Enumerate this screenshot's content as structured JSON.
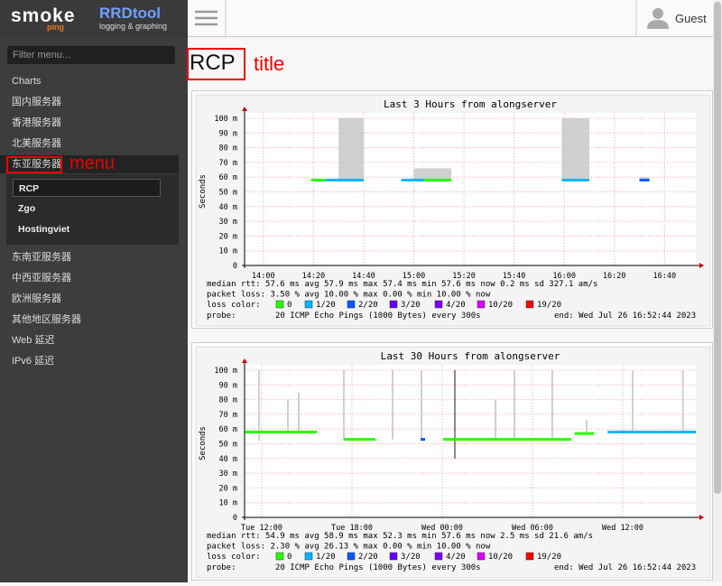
{
  "header": {
    "logo_smoke": "smoke",
    "logo_ping": "ping",
    "logo_rrd": "RRDtool",
    "logo_rrd_sub": "logging & graphing",
    "user": "Guest"
  },
  "sidebar": {
    "filter_placeholder": "Filter menu...",
    "items": [
      {
        "label": "Charts"
      },
      {
        "label": "国内服务器"
      },
      {
        "label": "香港服务器"
      },
      {
        "label": "北美服务器"
      },
      {
        "label": "东亚服务器",
        "children": [
          "RCP",
          "Zgo",
          "Hostingviet"
        ]
      },
      {
        "label": "东南亚服务器"
      },
      {
        "label": "中西亚服务器"
      },
      {
        "label": "欧洲服务器"
      },
      {
        "label": "其他地区服务器"
      },
      {
        "label": "Web 延迟"
      },
      {
        "label": "IPv6 延迟"
      }
    ]
  },
  "page": {
    "title": "RCP"
  },
  "annotations": {
    "title": "title",
    "menu": "menu"
  },
  "graphs": [
    {
      "title": "Last 3 Hours from alongserver",
      "y_label": "Seconds",
      "ylim": [
        0,
        100
      ],
      "yticks": [
        {
          "value": 0,
          "label": "0"
        },
        {
          "value": 10,
          "label": "10 m"
        },
        {
          "value": 20,
          "label": "20 m"
        },
        {
          "value": 30,
          "label": "30 m"
        },
        {
          "value": 40,
          "label": "40 m"
        },
        {
          "value": 50,
          "label": "50 m"
        },
        {
          "value": 60,
          "label": "60 m"
        },
        {
          "value": 70,
          "label": "70 m"
        },
        {
          "value": 80,
          "label": "80 m"
        },
        {
          "value": 90,
          "label": "90 m"
        },
        {
          "value": 100,
          "label": "100 m"
        }
      ],
      "xlim": [
        -7.5,
        172.5
      ],
      "xticks": [
        {
          "value": 0,
          "label": "14:00"
        },
        {
          "value": 20,
          "label": "14:20"
        },
        {
          "value": 40,
          "label": "14:40"
        },
        {
          "value": 60,
          "label": "15:00"
        },
        {
          "value": 80,
          "label": "15:20"
        },
        {
          "value": 100,
          "label": "15:40"
        },
        {
          "value": 120,
          "label": "16:00"
        },
        {
          "value": 140,
          "label": "16:20"
        },
        {
          "value": 160,
          "label": "16:40"
        }
      ],
      "smoke": [
        {
          "start": 30,
          "end": 40,
          "low": 58,
          "high": 100
        },
        {
          "start": 60,
          "end": 75,
          "low": 58,
          "high": 66
        },
        {
          "start": 119,
          "end": 130,
          "low": 58,
          "high": 100
        },
        {
          "start": 150,
          "end": 154,
          "low": 58,
          "high": 60
        }
      ],
      "median": [
        {
          "start": 19,
          "end": 25,
          "value": 58,
          "color": "#26ff00"
        },
        {
          "start": 25,
          "end": 40,
          "value": 58,
          "color": "#00b8ff"
        },
        {
          "start": 55,
          "end": 64,
          "value": 58,
          "color": "#00b8ff"
        },
        {
          "start": 64,
          "end": 75,
          "value": 58,
          "color": "#26ff00"
        },
        {
          "start": 119,
          "end": 130,
          "value": 58,
          "color": "#00b8ff"
        },
        {
          "start": 150,
          "end": 154,
          "value": 58,
          "color": "#0059ff"
        }
      ],
      "stats": [
        "median rtt:   57.6 ms avg   57.9 ms max   57.4 ms min   57.6 ms now   0.2 ms sd   327.1    am/s",
        "packet loss:  3.50 % avg   10.00 % max   0.00 % min   10.00 % now"
      ],
      "loss_label": "loss color:",
      "loss_colors": [
        {
          "label": "0",
          "color": "#26ff00"
        },
        {
          "label": "1/20",
          "color": "#00b8ff"
        },
        {
          "label": "2/20",
          "color": "#0059ff"
        },
        {
          "label": "3/20",
          "color": "#5e00ff"
        },
        {
          "label": "4/20",
          "color": "#7e00ff"
        },
        {
          "label": "10/20",
          "color": "#dd00ff"
        },
        {
          "label": "19/20",
          "color": "#ff0000"
        }
      ],
      "probe_label": "probe:",
      "probe": "20 ICMP Echo Pings (1000 Bytes) every 300s",
      "end": "end: Wed Jul 26 16:52:44 2023"
    },
    {
      "title": "Last 30 Hours from alongserver",
      "y_label": "Seconds",
      "ylim": [
        0,
        100
      ],
      "yticks": [
        {
          "value": 0,
          "label": "0"
        },
        {
          "value": 10,
          "label": "10 m"
        },
        {
          "value": 20,
          "label": "20 m"
        },
        {
          "value": 30,
          "label": "30 m"
        },
        {
          "value": 40,
          "label": "40 m"
        },
        {
          "value": 50,
          "label": "50 m"
        },
        {
          "value": 60,
          "label": "60 m"
        },
        {
          "value": 70,
          "label": "70 m"
        },
        {
          "value": 80,
          "label": "80 m"
        },
        {
          "value": 90,
          "label": "90 m"
        },
        {
          "value": 100,
          "label": "100 m"
        }
      ],
      "xlim": [
        10.86,
        40.86
      ],
      "xticks": [
        {
          "value": 12,
          "label": "Tue 12:00"
        },
        {
          "value": 18,
          "label": "Tue 18:00"
        },
        {
          "value": 24,
          "label": "Wed 00:00"
        },
        {
          "value": 30,
          "label": "Wed 06:00"
        },
        {
          "value": 36,
          "label": "Wed 12:00"
        }
      ],
      "smoke": [
        {
          "x": 11.82,
          "low": 52,
          "high": 100
        },
        {
          "x": 13.74,
          "low": 58,
          "high": 80
        },
        {
          "x": 14.46,
          "low": 58,
          "high": 85
        },
        {
          "x": 17.46,
          "low": 53,
          "high": 100
        },
        {
          "x": 20.7,
          "low": 53,
          "high": 100
        },
        {
          "x": 22.62,
          "low": 53,
          "high": 100
        },
        {
          "x": 24.84,
          "low": 40,
          "high": 100
        },
        {
          "x": 27.54,
          "low": 53,
          "high": 80
        },
        {
          "x": 28.8,
          "low": 53,
          "high": 100
        },
        {
          "x": 31.32,
          "low": 53,
          "high": 100
        },
        {
          "x": 33.6,
          "low": 57,
          "high": 66
        },
        {
          "x": 36.66,
          "low": 58,
          "high": 100
        },
        {
          "x": 40.0,
          "low": 58,
          "high": 100
        }
      ],
      "median": [
        {
          "start": 10.86,
          "end": 15.66,
          "value": 58,
          "color": "#26ff00"
        },
        {
          "start": 17.46,
          "end": 19.56,
          "value": 53,
          "color": "#26ff00"
        },
        {
          "start": 22.56,
          "end": 22.86,
          "value": 53,
          "color": "#0059ff"
        },
        {
          "start": 24.06,
          "end": 32.58,
          "value": 53,
          "color": "#26ff00"
        },
        {
          "start": 32.8,
          "end": 34.1,
          "value": 57,
          "color": "#26ff00"
        },
        {
          "start": 35.0,
          "end": 40.86,
          "value": 58,
          "color": "#00b8ff"
        }
      ],
      "stats": [
        "median rtt:   54.9 ms avg   58.9 ms max   52.3 ms min   57.6 ms now   2.5 ms sd   21.6     am/s",
        "packet loss:  2.30 % avg   26.13 % max   0.00 % min   10.00 % now"
      ],
      "loss_label": "loss color:",
      "loss_colors": [
        {
          "label": "0",
          "color": "#26ff00"
        },
        {
          "label": "1/20",
          "color": "#00b8ff"
        },
        {
          "label": "2/20",
          "color": "#0059ff"
        },
        {
          "label": "3/20",
          "color": "#5e00ff"
        },
        {
          "label": "4/20",
          "color": "#7e00ff"
        },
        {
          "label": "10/20",
          "color": "#dd00ff"
        },
        {
          "label": "19/20",
          "color": "#ff0000"
        }
      ],
      "probe_label": "probe:",
      "probe": "20 ICMP Echo Pings (1000 Bytes) every 300s",
      "end": "end: Wed Jul 26 16:52:44 2023"
    }
  ]
}
